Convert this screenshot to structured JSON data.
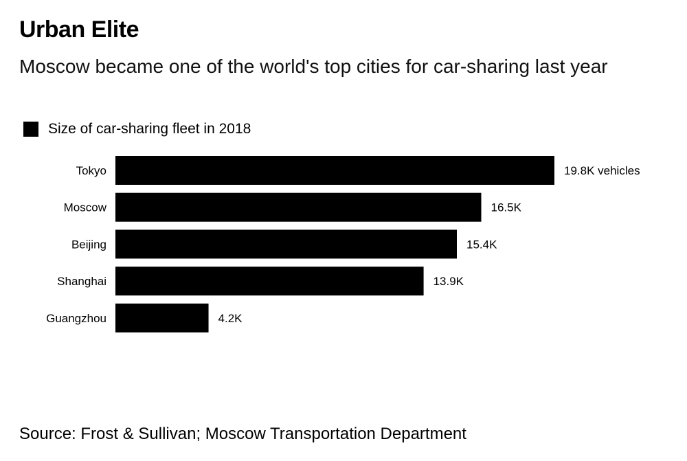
{
  "chart_data": {
    "type": "bar",
    "orientation": "horizontal",
    "title": "Urban Elite",
    "subtitle": "Moscow became one of the world's top cities for car-sharing last year",
    "legend": [
      "Size of car-sharing fleet in 2018"
    ],
    "categories": [
      "Tokyo",
      "Moscow",
      "Beijing",
      "Shanghai",
      "Guangzhou"
    ],
    "values": [
      19.8,
      16.5,
      15.4,
      13.9,
      4.2
    ],
    "value_labels": [
      "19.8K vehicles",
      "16.5K",
      "15.4K",
      "13.9K",
      "4.2K"
    ],
    "unit": "thousand vehicles",
    "xlim": [
      0,
      19.8
    ],
    "grid": false,
    "bar_color": "#000000",
    "source": "Source: Frost & Sullivan; Moscow Transportation Department"
  }
}
